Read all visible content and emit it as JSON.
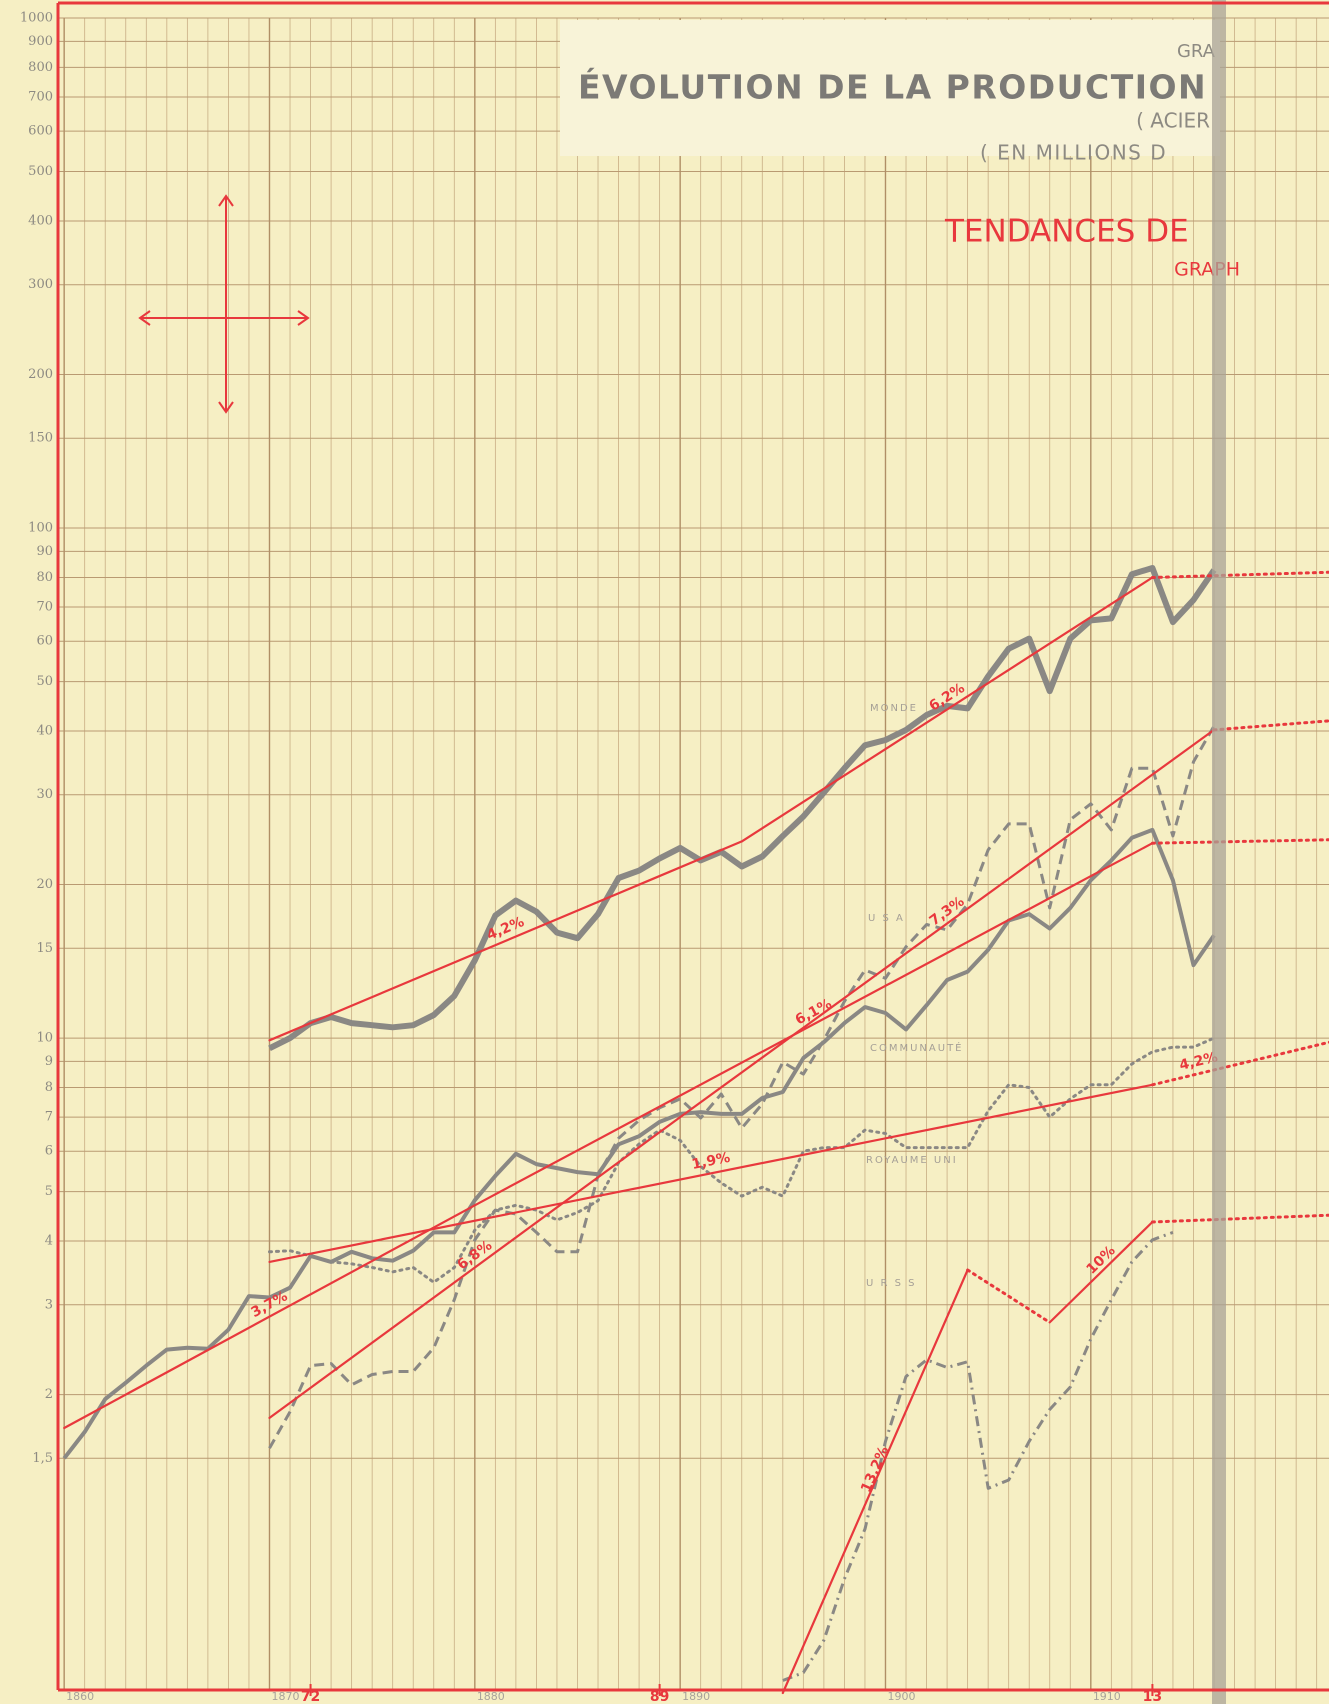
{
  "chart_data": {
    "type": "line",
    "header_cut": "GRA",
    "title": "ÉVOLUTION DE LA PRODUCTION",
    "subtitle": "( ACIER",
    "unit_note": "( EN MILLIONS D",
    "trend_title": "TENDANCES DE",
    "trend_subtitle": "GRAPH",
    "log_scale": true,
    "grid": true,
    "xlim": [
      1859.7,
      1921.6
    ],
    "xticks": [
      1860,
      1870,
      1880,
      1890,
      1900,
      1910
    ],
    "xticks_marked": [
      {
        "value": 1872,
        "label": "72"
      },
      {
        "value": 1889,
        "label": "89"
      },
      {
        "value": 1913,
        "label": "13"
      }
    ],
    "ylim": [
      0.527,
      1000
    ],
    "yticks": [
      {
        "value": 1.5,
        "label": "1,5"
      },
      2,
      3,
      4,
      5,
      6,
      7,
      8,
      9,
      10,
      15,
      20,
      30,
      40,
      50,
      60,
      70,
      80,
      90,
      100,
      150,
      200,
      300,
      400,
      500,
      600,
      700,
      800,
      900,
      1000
    ],
    "series": [
      {
        "name": "MONDE",
        "color": "#8a8884",
        "style": "solid",
        "width": 6,
        "x": [
          1870,
          1871,
          1872,
          1873,
          1874,
          1875,
          1876,
          1877,
          1878,
          1879,
          1880,
          1881,
          1882,
          1883,
          1884,
          1885,
          1886,
          1887,
          1888,
          1889,
          1890,
          1891,
          1892,
          1893,
          1894,
          1895,
          1896,
          1897,
          1898,
          1899,
          1900,
          1901,
          1902,
          1903,
          1904,
          1905,
          1906,
          1907,
          1908,
          1909,
          1910,
          1911,
          1912,
          1913,
          1914,
          1915,
          1916
        ],
        "values": [
          9.55,
          10,
          10.7,
          11.0,
          10.7,
          10.6,
          10.5,
          10.6,
          11.1,
          12.1,
          14.2,
          17.4,
          18.6,
          17.7,
          16.1,
          15.7,
          17.5,
          20.6,
          21.3,
          22.5,
          23.6,
          22.3,
          23.2,
          21.7,
          22.7,
          24.9,
          27.2,
          30.3,
          33.8,
          37.5,
          38.4,
          40.2,
          43.0,
          44.8,
          44.3,
          51.2,
          58.0,
          60.7,
          47.9,
          60.7,
          65.9,
          66.5,
          81.2,
          83.5,
          65.4,
          72.3,
          82.7
        ]
      },
      {
        "name": "U S A",
        "color": "#8a8884",
        "style": "dashed",
        "width": 3,
        "x": [
          1870,
          1871,
          1872,
          1873,
          1874,
          1875,
          1876,
          1877,
          1878,
          1879,
          1880,
          1881,
          1882,
          1883,
          1884,
          1885,
          1886,
          1887,
          1888,
          1889,
          1890,
          1891,
          1892,
          1893,
          1894,
          1895,
          1896,
          1897,
          1898,
          1899,
          1900,
          1901,
          1902,
          1903,
          1904,
          1905,
          1906,
          1907,
          1908,
          1909,
          1910,
          1911,
          1912,
          1913,
          1914,
          1915,
          1916
        ],
        "values": [
          1.57,
          1.85,
          2.28,
          2.3,
          2.09,
          2.19,
          2.22,
          2.22,
          2.47,
          3.07,
          4.02,
          4.6,
          4.52,
          4.16,
          3.81,
          3.81,
          5.37,
          6.36,
          6.9,
          7.3,
          7.6,
          6.97,
          7.77,
          6.66,
          7.43,
          8.97,
          8.5,
          9.91,
          11.8,
          13.6,
          13.1,
          15.1,
          16.7,
          16.3,
          18.3,
          23.4,
          26.3,
          26.3,
          18.0,
          26.8,
          28.8,
          25.6,
          33.8,
          33.8,
          24.9,
          34.8,
          40.9
        ]
      },
      {
        "name": "COMMUNAUTÉ",
        "color": "#8a8884",
        "style": "solid",
        "width": 4,
        "x": [
          1860,
          1861,
          1862,
          1863,
          1864,
          1865,
          1866,
          1867,
          1868,
          1869,
          1870,
          1871,
          1872,
          1873,
          1874,
          1875,
          1876,
          1877,
          1878,
          1879,
          1880,
          1881,
          1882,
          1883,
          1884,
          1885,
          1886,
          1887,
          1888,
          1889,
          1890,
          1891,
          1892,
          1893,
          1894,
          1895,
          1896,
          1897,
          1898,
          1899,
          1900,
          1901,
          1902,
          1903,
          1904,
          1905,
          1906,
          1907,
          1908,
          1909,
          1910,
          1911,
          1912,
          1913,
          1914,
          1915,
          1916
        ],
        "values": [
          1.5,
          1.69,
          1.96,
          2.11,
          2.28,
          2.45,
          2.47,
          2.46,
          2.68,
          3.12,
          3.1,
          3.24,
          3.74,
          3.64,
          3.81,
          3.7,
          3.66,
          3.83,
          4.16,
          4.16,
          4.81,
          5.37,
          5.93,
          5.66,
          5.56,
          5.46,
          5.41,
          6.19,
          6.42,
          6.85,
          7.1,
          7.16,
          7.1,
          7.1,
          7.63,
          7.84,
          9.14,
          9.82,
          10.7,
          11.5,
          11.2,
          10.4,
          11.6,
          13.0,
          13.5,
          14.9,
          17.0,
          17.5,
          16.4,
          18.0,
          20.4,
          22.3,
          24.7,
          25.6,
          20.4,
          13.9,
          15.9
        ]
      },
      {
        "name": "ROYAUME UNI",
        "color": "#8a8884",
        "style": "dotted",
        "width": 3,
        "x": [
          1870,
          1871,
          1872,
          1873,
          1874,
          1875,
          1876,
          1877,
          1878,
          1879,
          1880,
          1881,
          1882,
          1883,
          1884,
          1885,
          1886,
          1887,
          1888,
          1889,
          1890,
          1891,
          1892,
          1893,
          1894,
          1895,
          1896,
          1897,
          1898,
          1899,
          1900,
          1901,
          1902,
          1903,
          1904,
          1905,
          1906,
          1907,
          1908,
          1909,
          1910,
          1911,
          1912,
          1913,
          1914,
          1915,
          1916
        ],
        "values": [
          3.81,
          3.83,
          3.74,
          3.64,
          3.61,
          3.55,
          3.48,
          3.55,
          3.32,
          3.55,
          4.2,
          4.6,
          4.7,
          4.6,
          4.4,
          4.55,
          4.8,
          5.7,
          6.2,
          6.6,
          6.3,
          5.6,
          5.2,
          4.9,
          5.1,
          4.9,
          6.0,
          6.1,
          6.1,
          6.6,
          6.5,
          6.1,
          6.1,
          6.1,
          6.1,
          7.2,
          8.1,
          8.0,
          7.0,
          7.6,
          8.1,
          8.1,
          8.9,
          9.4,
          9.6,
          9.6,
          10
        ]
      },
      {
        "name": "U R S S",
        "color": "#8a8884",
        "style": "dashdot",
        "width": 3,
        "x": [
          1895,
          1896,
          1897,
          1898,
          1899,
          1900,
          1901,
          1902,
          1903,
          1904,
          1905,
          1906,
          1907,
          1908,
          1909,
          1910,
          1911,
          1912,
          1913,
          1914
        ],
        "values": [
          0.55,
          0.57,
          0.66,
          0.87,
          1.09,
          1.62,
          2.17,
          2.34,
          2.26,
          2.32,
          1.31,
          1.36,
          1.62,
          1.87,
          2.07,
          2.57,
          3.07,
          3.64,
          4.02,
          4.16
        ]
      }
    ],
    "trend_color": "#e8383d",
    "trends": [
      {
        "label": "4,2%",
        "style": "solid",
        "x": [
          1870,
          1893
        ],
        "values": [
          9.9,
          24.3
        ]
      },
      {
        "label": "6,2%",
        "style": "solid",
        "x": [
          1893,
          1913
        ],
        "values": [
          24.3,
          80
        ]
      },
      {
        "label": "6,8%",
        "style": "solid",
        "x": [
          1870,
          1890
        ],
        "values": [
          1.8,
          7.0
        ]
      },
      {
        "label": "7,3%",
        "style": "solid",
        "x": [
          1890,
          1916
        ],
        "values": [
          7.0,
          40.2
        ]
      },
      {
        "label": "3,7%",
        "style": "solid",
        "x": [
          1860,
          1880
        ],
        "values": [
          1.72,
          4.7
        ]
      },
      {
        "label": "6,1%",
        "style": "solid",
        "x": [
          1880,
          1913
        ],
        "values": [
          4.7,
          24.1
        ]
      },
      {
        "label": "1,9%",
        "style": "solid",
        "x": [
          1870,
          1913
        ],
        "values": [
          3.64,
          8.1
        ]
      },
      {
        "label": "13,2%",
        "style": "solid",
        "x": [
          1895,
          1904
        ],
        "values": [
          0.52,
          3.51
        ]
      },
      {
        "label": "10%",
        "style": "solid",
        "x": [
          1908,
          1913
        ],
        "values": [
          2.77,
          4.36
        ]
      },
      {
        "label": "4,2%",
        "style": "dotted",
        "x": [
          1913,
          1922
        ],
        "values": [
          8.1,
          9.9
        ]
      },
      {
        "style": "dotted",
        "x": [
          1904,
          1908
        ],
        "values": [
          3.51,
          2.77
        ]
      },
      {
        "style": "dotted",
        "x": [
          1913,
          1922
        ],
        "values": [
          80,
          82
        ]
      },
      {
        "style": "dotted",
        "x": [
          1913,
          1922
        ],
        "values": [
          24.1,
          24.5
        ]
      },
      {
        "style": "dotted",
        "x": [
          1913,
          1922
        ],
        "values": [
          4.36,
          4.5
        ]
      },
      {
        "style": "dotted",
        "x": [
          1916,
          1922
        ],
        "values": [
          40.2,
          42
        ]
      }
    ]
  }
}
